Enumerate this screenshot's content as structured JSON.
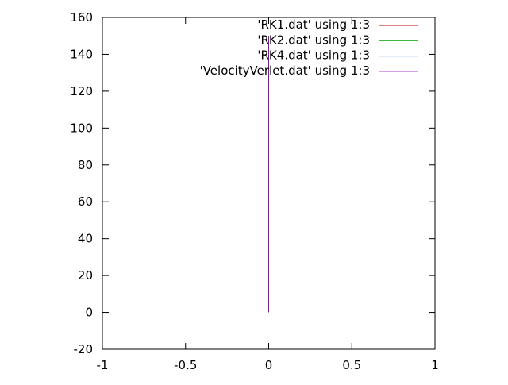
{
  "chart_data": {
    "type": "line",
    "title": "",
    "xlabel": "",
    "ylabel": "",
    "xlim": [
      -1,
      1
    ],
    "ylim": [
      -20,
      160
    ],
    "x_ticks": [
      -1,
      -0.5,
      0,
      0.5,
      1
    ],
    "x_tick_labels": [
      "-1",
      "-0.5",
      "0",
      "0.5",
      "1"
    ],
    "y_ticks": [
      -20,
      0,
      20,
      40,
      60,
      80,
      100,
      120,
      140,
      160
    ],
    "y_tick_labels": [
      "-20",
      "0",
      "20",
      "40",
      "60",
      "80",
      "100",
      "120",
      "140",
      "160"
    ],
    "grid": false,
    "legend_position": "top-right",
    "series": [
      {
        "name": "'RK1.dat' using 1:3",
        "color": "#c00000",
        "x": [
          0,
          0
        ],
        "y": [
          0,
          150
        ]
      },
      {
        "name": "'RK2.dat' using 1:3",
        "color": "#00a000",
        "x": [
          0,
          0
        ],
        "y": [
          0,
          150
        ]
      },
      {
        "name": "'RK4.dat' using 1:3",
        "color": "#0080a0",
        "x": [
          0,
          0
        ],
        "y": [
          0,
          150
        ]
      },
      {
        "name": "'VelocityVerlet.dat' using 1:3",
        "color": "#a000c0",
        "x": [
          0,
          0
        ],
        "y": [
          0,
          150
        ]
      }
    ]
  }
}
